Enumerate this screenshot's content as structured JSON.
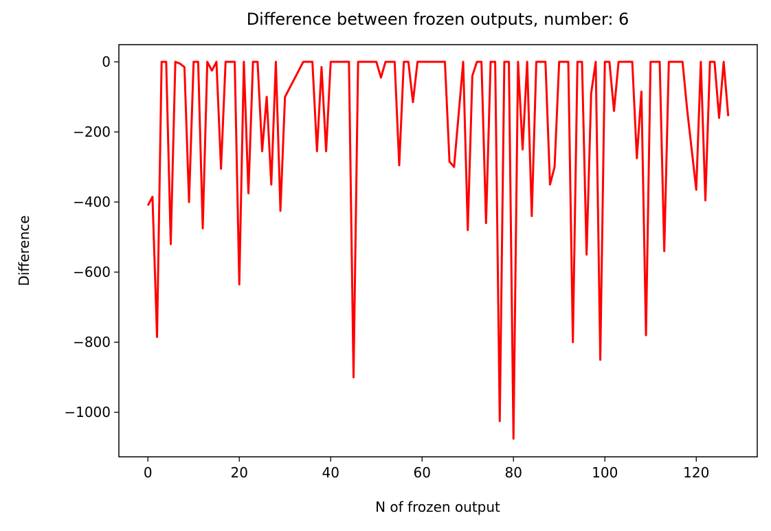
{
  "chart_data": {
    "type": "line",
    "title": "Difference between frozen outputs, number: 6",
    "xlabel": "N of frozen output",
    "ylabel": "Difference",
    "color": "#ff0000",
    "x": [
      0,
      1,
      2,
      3,
      4,
      5,
      6,
      7,
      8,
      9,
      10,
      11,
      12,
      13,
      14,
      15,
      16,
      17,
      18,
      19,
      20,
      21,
      22,
      23,
      24,
      25,
      26,
      27,
      28,
      29,
      30,
      31,
      32,
      33,
      34,
      35,
      36,
      37,
      38,
      39,
      40,
      41,
      42,
      43,
      44,
      45,
      46,
      47,
      48,
      49,
      50,
      51,
      52,
      53,
      54,
      55,
      56,
      57,
      58,
      59,
      60,
      61,
      62,
      63,
      64,
      65,
      66,
      67,
      68,
      69,
      70,
      71,
      72,
      73,
      74,
      75,
      76,
      77,
      78,
      79,
      80,
      81,
      82,
      83,
      84,
      85,
      86,
      87,
      88,
      89,
      90,
      91,
      92,
      93,
      94,
      95,
      96,
      97,
      98,
      99,
      100,
      101,
      102,
      103,
      104,
      105,
      106,
      107,
      108,
      109,
      110,
      111,
      112,
      113,
      114,
      115,
      116,
      117,
      118,
      119,
      120,
      121,
      122,
      123,
      124,
      125,
      126,
      127
    ],
    "values": [
      -410,
      -385,
      -785,
      0,
      0,
      -520,
      0,
      -5,
      -15,
      -400,
      0,
      0,
      -475,
      0,
      -25,
      0,
      -305,
      0,
      0,
      0,
      -635,
      0,
      -375,
      0,
      0,
      -255,
      -100,
      -350,
      0,
      -425,
      -100,
      -75,
      -50,
      -25,
      0,
      0,
      0,
      -255,
      -15,
      -255,
      0,
      0,
      0,
      0,
      0,
      -900,
      0,
      0,
      0,
      0,
      0,
      -45,
      0,
      0,
      0,
      -295,
      0,
      0,
      -115,
      0,
      0,
      0,
      0,
      0,
      0,
      0,
      -285,
      -300,
      -150,
      0,
      -480,
      -40,
      0,
      0,
      -460,
      0,
      0,
      -1025,
      0,
      0,
      -1075,
      0,
      -250,
      0,
      -440,
      0,
      0,
      0,
      -350,
      -300,
      0,
      0,
      0,
      -800,
      0,
      0,
      -550,
      -90,
      0,
      -850,
      0,
      0,
      -140,
      0,
      0,
      0,
      0,
      -275,
      -85,
      -780,
      0,
      0,
      0,
      -540,
      0,
      0,
      0,
      0,
      -135,
      -250,
      -365,
      0,
      -395,
      0,
      0,
      -160,
      0,
      -155
    ],
    "xlim": [
      -6.35,
      133.35
    ],
    "ylim": [
      -1127,
      49
    ],
    "xticks": [
      0,
      20,
      40,
      60,
      80,
      100,
      120
    ],
    "yticks": [
      {
        "value": -1000,
        "label": "−1000"
      },
      {
        "value": -800,
        "label": "−800"
      },
      {
        "value": -600,
        "label": "−600"
      },
      {
        "value": -400,
        "label": "−400"
      },
      {
        "value": -200,
        "label": "−200"
      },
      0
    ]
  }
}
